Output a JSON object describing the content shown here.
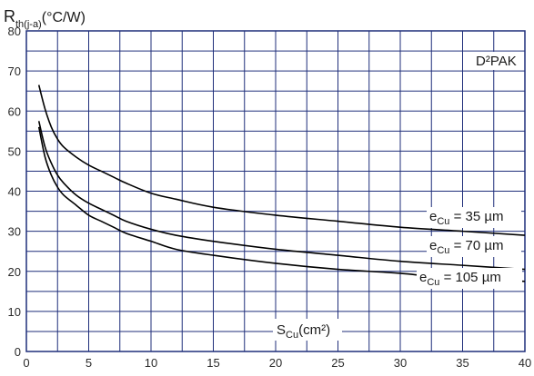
{
  "chart_data": {
    "type": "line",
    "ylabel": "R",
    "ylabel_sub": "th(j-a)",
    "ylabel_unit": "(°C/W)",
    "xlabel": "S",
    "xlabel_sub": "Cu",
    "xlabel_unit": "(cm²)",
    "annotation": "D²PAK",
    "xlim": [
      0,
      40
    ],
    "ylim": [
      0,
      80
    ],
    "xticks": [
      0,
      5,
      10,
      15,
      20,
      25,
      30,
      35,
      40
    ],
    "yticks": [
      0,
      10,
      20,
      30,
      40,
      50,
      60,
      70,
      80
    ],
    "grid": true,
    "legend": "inline labels at right end of curves",
    "line_color": "#000000",
    "grid_color": "#1f2e7a",
    "series": [
      {
        "name_main": "e",
        "name_sub": "Cu",
        "name_value": " = 35 µm",
        "x": [
          1,
          1.5,
          2,
          2.5,
          3,
          4,
          5,
          6,
          7,
          8,
          10,
          12,
          15,
          20,
          25,
          30,
          35,
          40
        ],
        "y": [
          66.5,
          60.5,
          56,
          53,
          51,
          48.5,
          46.5,
          45,
          43.5,
          42,
          39.5,
          38,
          36,
          34,
          32.5,
          31,
          30,
          29
        ]
      },
      {
        "name_main": "e",
        "name_sub": "Cu",
        "name_value": " = 70 µm",
        "x": [
          1,
          1.5,
          2,
          2.5,
          3,
          4,
          5,
          6,
          7,
          8,
          10,
          12,
          15,
          20,
          25,
          30,
          35,
          40
        ],
        "y": [
          57.5,
          51,
          47,
          44,
          42,
          39,
          37,
          35.5,
          34,
          32.5,
          30.5,
          29,
          27.5,
          25.5,
          24,
          22.5,
          21.5,
          20.5
        ]
      },
      {
        "name_main": "e",
        "name_sub": "Cu",
        "name_value": " = 105 µm",
        "x": [
          1,
          1.5,
          2,
          2.5,
          3,
          4,
          5,
          6,
          7,
          8,
          10,
          12,
          15,
          20,
          25,
          30,
          35,
          40
        ],
        "y": [
          56,
          48.5,
          44,
          41,
          39,
          36.5,
          34,
          32.5,
          31,
          29.5,
          27.5,
          25.5,
          24,
          22,
          20.5,
          19.5,
          18,
          17.5
        ]
      }
    ]
  }
}
